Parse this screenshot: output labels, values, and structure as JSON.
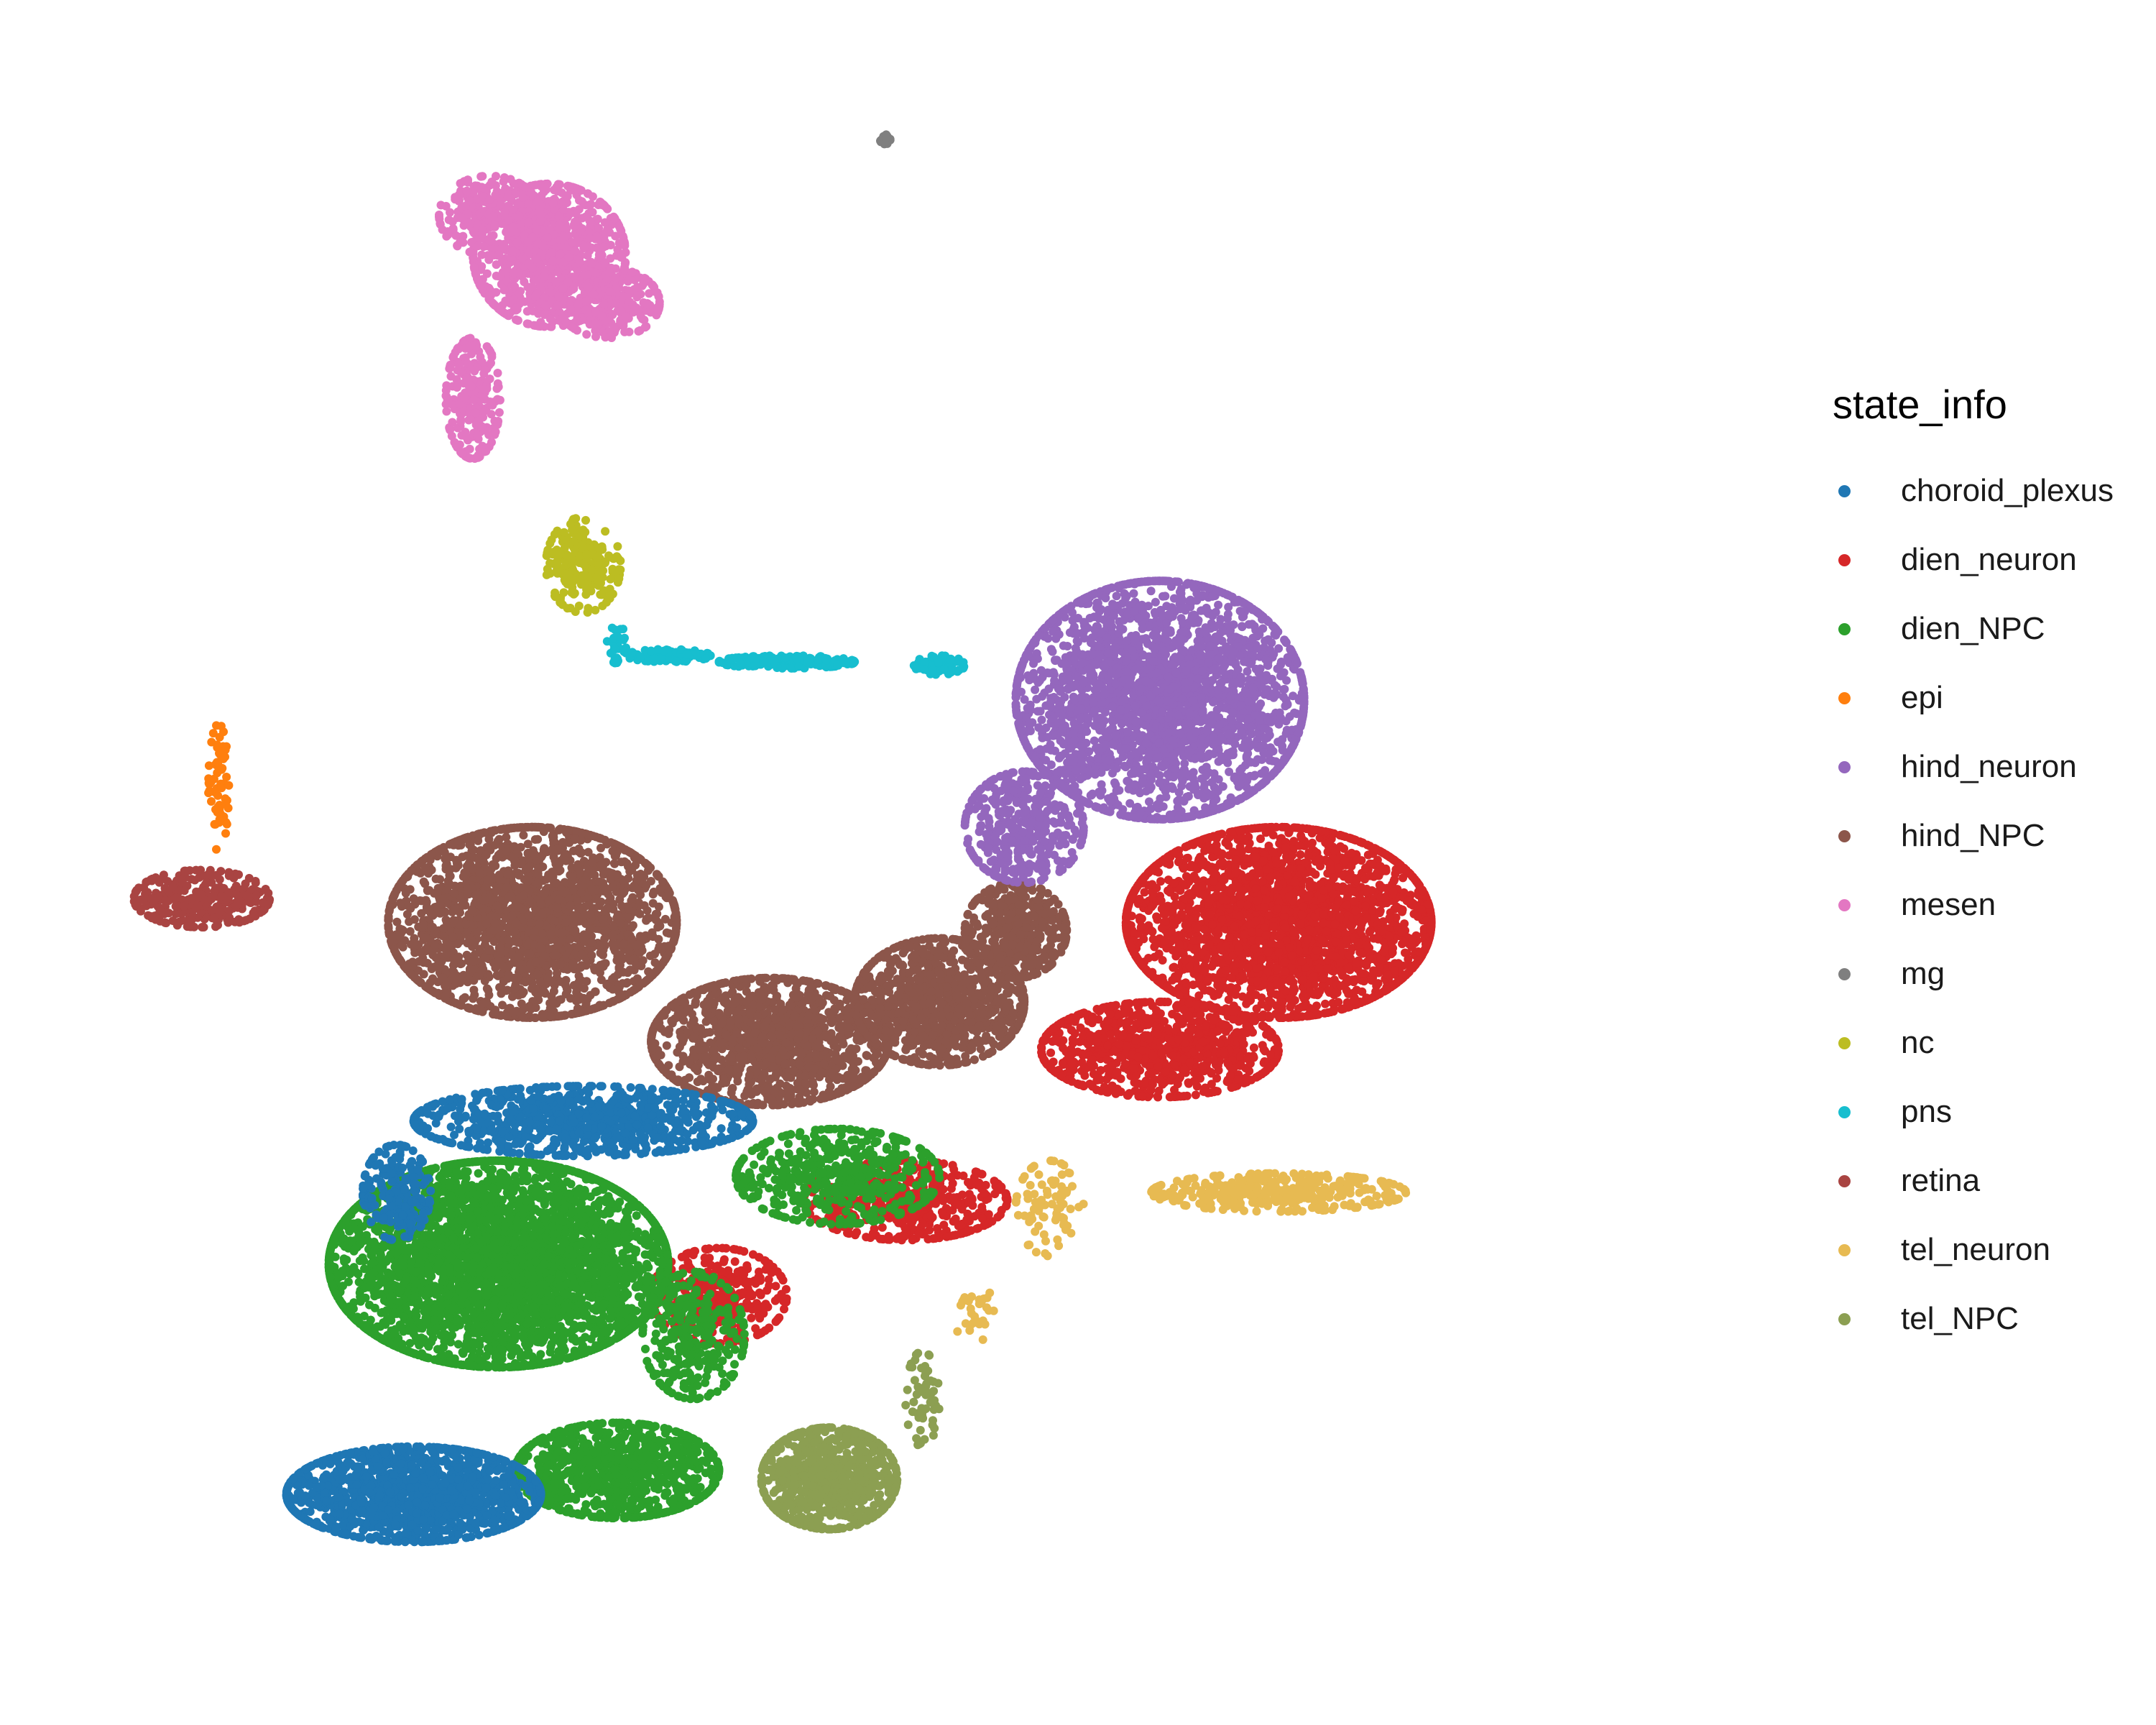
{
  "chart_data": {
    "type": "scatter",
    "title": "",
    "xlabel": "",
    "ylabel": "",
    "xlim": [
      0,
      1
    ],
    "ylim": [
      0,
      1
    ],
    "grid": false,
    "axes_visible": false,
    "legend_placement": "right",
    "legend": {
      "title": "state_info",
      "items": [
        {
          "name": "choroid_plexus",
          "color": "#1f77b4"
        },
        {
          "name": "dien_neuron",
          "color": "#d62728"
        },
        {
          "name": "dien_NPC",
          "color": "#2ca02c"
        },
        {
          "name": "epi",
          "color": "#ff7f0e"
        },
        {
          "name": "hind_neuron",
          "color": "#9467bd"
        },
        {
          "name": "hind_NPC",
          "color": "#8c564b"
        },
        {
          "name": "mesen",
          "color": "#e377c2"
        },
        {
          "name": "mg",
          "color": "#7f7f7f"
        },
        {
          "name": "nc",
          "color": "#bcbd22"
        },
        {
          "name": "pns",
          "color": "#17becf"
        },
        {
          "name": "retina",
          "color": "#a94442"
        },
        {
          "name": "tel_neuron",
          "color": "#e7ba52"
        },
        {
          "name": "tel_NPC",
          "color": "#8c9f52"
        }
      ]
    },
    "series": [
      {
        "name": "mesen",
        "clusters": [
          {
            "cx": 0.29,
            "cy": 0.88,
            "rx": 0.045,
            "ry": 0.045,
            "n": 900
          },
          {
            "cx": 0.245,
            "cy": 0.79,
            "rx": 0.016,
            "ry": 0.038,
            "n": 250
          },
          {
            "cx": 0.255,
            "cy": 0.905,
            "rx": 0.03,
            "ry": 0.025,
            "n": 250
          },
          {
            "cx": 0.325,
            "cy": 0.85,
            "rx": 0.03,
            "ry": 0.022,
            "n": 250
          }
        ]
      },
      {
        "name": "mg",
        "clusters": [
          {
            "cx": 0.488,
            "cy": 0.953,
            "rx": 0.003,
            "ry": 0.003,
            "n": 25
          }
        ]
      },
      {
        "name": "nc",
        "clusters": [
          {
            "cx": 0.31,
            "cy": 0.685,
            "rx": 0.022,
            "ry": 0.03,
            "n": 200
          }
        ]
      },
      {
        "name": "pns",
        "clusters": [
          {
            "cx": 0.33,
            "cy": 0.635,
            "rx": 0.006,
            "ry": 0.012,
            "n": 30
          },
          {
            "cx": 0.36,
            "cy": 0.628,
            "rx": 0.025,
            "ry": 0.004,
            "n": 90
          },
          {
            "cx": 0.43,
            "cy": 0.624,
            "rx": 0.04,
            "ry": 0.004,
            "n": 220
          },
          {
            "cx": 0.52,
            "cy": 0.622,
            "rx": 0.015,
            "ry": 0.006,
            "n": 80
          }
        ]
      },
      {
        "name": "epi",
        "clusters": [
          {
            "cx": 0.095,
            "cy": 0.545,
            "rx": 0.006,
            "ry": 0.04,
            "n": 60
          }
        ]
      },
      {
        "name": "retina",
        "clusters": [
          {
            "cx": 0.085,
            "cy": 0.475,
            "rx": 0.04,
            "ry": 0.018,
            "n": 300
          }
        ]
      },
      {
        "name": "hind_NPC",
        "clusters": [
          {
            "cx": 0.28,
            "cy": 0.46,
            "rx": 0.085,
            "ry": 0.06,
            "n": 2200
          },
          {
            "cx": 0.42,
            "cy": 0.385,
            "rx": 0.07,
            "ry": 0.04,
            "n": 1300
          },
          {
            "cx": 0.52,
            "cy": 0.41,
            "rx": 0.05,
            "ry": 0.04,
            "n": 1000
          },
          {
            "cx": 0.565,
            "cy": 0.455,
            "rx": 0.03,
            "ry": 0.03,
            "n": 400
          }
        ]
      },
      {
        "name": "hind_neuron",
        "clusters": [
          {
            "cx": 0.65,
            "cy": 0.6,
            "rx": 0.085,
            "ry": 0.075,
            "n": 2600
          },
          {
            "cx": 0.57,
            "cy": 0.52,
            "rx": 0.035,
            "ry": 0.035,
            "n": 400
          }
        ]
      },
      {
        "name": "dien_neuron",
        "clusters": [
          {
            "cx": 0.72,
            "cy": 0.46,
            "rx": 0.09,
            "ry": 0.06,
            "n": 2600
          },
          {
            "cx": 0.65,
            "cy": 0.38,
            "rx": 0.07,
            "ry": 0.03,
            "n": 900
          },
          {
            "cx": 0.5,
            "cy": 0.285,
            "rx": 0.06,
            "ry": 0.025,
            "n": 500
          },
          {
            "cx": 0.39,
            "cy": 0.225,
            "rx": 0.04,
            "ry": 0.03,
            "n": 350
          }
        ]
      },
      {
        "name": "tel_neuron",
        "clusters": [
          {
            "cx": 0.72,
            "cy": 0.29,
            "rx": 0.075,
            "ry": 0.012,
            "n": 350
          },
          {
            "cx": 0.585,
            "cy": 0.28,
            "rx": 0.02,
            "ry": 0.03,
            "n": 80
          },
          {
            "cx": 0.54,
            "cy": 0.215,
            "rx": 0.012,
            "ry": 0.02,
            "n": 30
          }
        ]
      },
      {
        "name": "dien_NPC",
        "clusters": [
          {
            "cx": 0.26,
            "cy": 0.245,
            "rx": 0.1,
            "ry": 0.065,
            "n": 3800
          },
          {
            "cx": 0.33,
            "cy": 0.115,
            "rx": 0.06,
            "ry": 0.03,
            "n": 900
          },
          {
            "cx": 0.46,
            "cy": 0.3,
            "rx": 0.06,
            "ry": 0.03,
            "n": 500
          },
          {
            "cx": 0.375,
            "cy": 0.2,
            "rx": 0.03,
            "ry": 0.04,
            "n": 300
          }
        ]
      },
      {
        "name": "choroid_plexus",
        "clusters": [
          {
            "cx": 0.31,
            "cy": 0.335,
            "rx": 0.1,
            "ry": 0.022,
            "n": 900
          },
          {
            "cx": 0.21,
            "cy": 0.1,
            "rx": 0.075,
            "ry": 0.03,
            "n": 1400
          },
          {
            "cx": 0.2,
            "cy": 0.29,
            "rx": 0.02,
            "ry": 0.03,
            "n": 200
          }
        ]
      },
      {
        "name": "tel_NPC",
        "clusters": [
          {
            "cx": 0.455,
            "cy": 0.11,
            "rx": 0.04,
            "ry": 0.032,
            "n": 800
          },
          {
            "cx": 0.51,
            "cy": 0.16,
            "rx": 0.01,
            "ry": 0.03,
            "n": 60
          }
        ]
      }
    ]
  }
}
